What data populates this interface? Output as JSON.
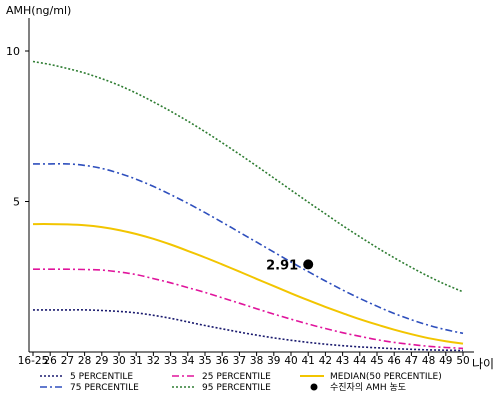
{
  "chart_data": {
    "type": "line",
    "ylabel": "AMH(ng/ml)",
    "xlabel": "나이",
    "ylim": [
      0,
      10.5
    ],
    "y_ticks": [
      5,
      10
    ],
    "x_ticks": [
      "16-25",
      "26",
      "27",
      "28",
      "29",
      "30",
      "31",
      "32",
      "33",
      "34",
      "35",
      "36",
      "37",
      "38",
      "39",
      "40",
      "41",
      "42",
      "43",
      "44",
      "45",
      "46",
      "47",
      "48",
      "49",
      "50"
    ],
    "x": [
      25,
      26,
      27,
      28,
      29,
      30,
      31,
      32,
      33,
      34,
      35,
      36,
      37,
      38,
      39,
      40,
      41,
      42,
      43,
      44,
      45,
      46,
      47,
      48,
      49,
      50
    ],
    "grid": false,
    "legend_position": "bottom",
    "series": [
      {
        "name": "5 PERCENTILE",
        "style": "dotted",
        "color": "#1a1a6e",
        "values": [
          1.4,
          1.4,
          1.4,
          1.4,
          1.38,
          1.35,
          1.3,
          1.22,
          1.12,
          1.0,
          0.88,
          0.77,
          0.66,
          0.56,
          0.47,
          0.39,
          0.32,
          0.26,
          0.21,
          0.17,
          0.14,
          0.11,
          0.09,
          0.07,
          0.06,
          0.05
        ]
      },
      {
        "name": "25 PERCENTILE",
        "style": "dashdot",
        "color": "#e0149c",
        "values": [
          2.75,
          2.75,
          2.75,
          2.74,
          2.72,
          2.66,
          2.57,
          2.44,
          2.3,
          2.14,
          1.98,
          1.8,
          1.62,
          1.44,
          1.26,
          1.09,
          0.93,
          0.78,
          0.64,
          0.52,
          0.41,
          0.32,
          0.25,
          0.19,
          0.15,
          0.12
        ]
      },
      {
        "name": "MEDIAN(50 PERCENTILE)",
        "style": "solid",
        "color": "#f2c500",
        "values": [
          4.25,
          4.25,
          4.24,
          4.21,
          4.15,
          4.05,
          3.92,
          3.76,
          3.57,
          3.36,
          3.14,
          2.91,
          2.67,
          2.43,
          2.19,
          1.95,
          1.72,
          1.5,
          1.29,
          1.09,
          0.91,
          0.74,
          0.59,
          0.46,
          0.36,
          0.28
        ]
      },
      {
        "name": "75 PERCENTILE",
        "style": "dashdot",
        "color": "#2e4fbd",
        "values": [
          6.25,
          6.25,
          6.25,
          6.2,
          6.1,
          5.94,
          5.74,
          5.5,
          5.23,
          4.94,
          4.63,
          4.31,
          3.98,
          3.65,
          3.32,
          2.99,
          2.67,
          2.36,
          2.06,
          1.78,
          1.52,
          1.28,
          1.07,
          0.89,
          0.74,
          0.62
        ]
      },
      {
        "name": "95 PERCENTILE",
        "style": "dotted",
        "color": "#2e7d32",
        "values": [
          9.65,
          9.55,
          9.42,
          9.27,
          9.08,
          8.86,
          8.6,
          8.31,
          8.0,
          7.67,
          7.32,
          6.95,
          6.57,
          6.18,
          5.78,
          5.38,
          4.98,
          4.59,
          4.2,
          3.83,
          3.47,
          3.13,
          2.81,
          2.51,
          2.24,
          2.0
        ]
      }
    ],
    "marker": {
      "x": 41,
      "y": 2.91,
      "label": "2.91",
      "legend_label": "수진자의 AMH 농도",
      "color": "#000000"
    }
  }
}
